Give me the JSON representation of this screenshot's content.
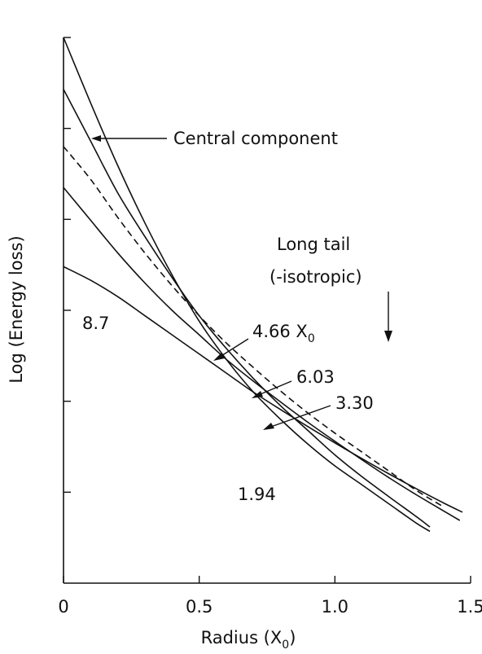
{
  "chart_data": {
    "type": "line",
    "xlabel": "Radius (X",
    "xlabel_sub": "0",
    "xlabel_close": ")",
    "ylabel": "Log (Energy loss)",
    "xlim": [
      0,
      1.5
    ],
    "x_ticks": [
      "0",
      "0.5",
      "1.0",
      "1.5"
    ],
    "x_tick_values": [
      0,
      0.5,
      1.0,
      1.5
    ],
    "y_ticks_count": 6,
    "ylim": [
      0,
      1
    ],
    "grid": false,
    "series": [
      {
        "name": "1.94",
        "dashed": false,
        "x": [
          0,
          0.1,
          0.2,
          0.3,
          0.4,
          0.5,
          0.6,
          0.7,
          0.8,
          0.9,
          1.0,
          1.1,
          1.2,
          1.3,
          1.35
        ],
        "y": [
          1.0,
          0.88,
          0.765,
          0.66,
          0.565,
          0.48,
          0.41,
          0.35,
          0.3,
          0.255,
          0.215,
          0.18,
          0.145,
          0.11,
          0.095
        ]
      },
      {
        "name": "3.30",
        "dashed": false,
        "x": [
          0,
          0.1,
          0.2,
          0.3,
          0.4,
          0.5,
          0.6,
          0.7,
          0.8,
          0.9,
          1.0,
          1.1,
          1.2,
          1.3,
          1.35
        ],
        "y": [
          0.905,
          0.81,
          0.715,
          0.635,
          0.56,
          0.49,
          0.43,
          0.375,
          0.325,
          0.28,
          0.235,
          0.195,
          0.158,
          0.122,
          0.103
        ]
      },
      {
        "name": "4.66 X",
        "subscript": "0",
        "dashed": true,
        "x": [
          0,
          0.1,
          0.2,
          0.3,
          0.4,
          0.5,
          0.6,
          0.7,
          0.8,
          0.9,
          1.0,
          1.1,
          1.2,
          1.3,
          1.4
        ],
        "y": [
          0.8,
          0.74,
          0.67,
          0.605,
          0.545,
          0.49,
          0.44,
          0.395,
          0.352,
          0.312,
          0.275,
          0.24,
          0.205,
          0.17,
          0.14
        ]
      },
      {
        "name": "6.03",
        "dashed": false,
        "x": [
          0,
          0.1,
          0.2,
          0.3,
          0.4,
          0.5,
          0.6,
          0.7,
          0.8,
          0.9,
          1.0,
          1.1,
          1.2,
          1.3,
          1.46
        ],
        "y": [
          0.725,
          0.665,
          0.605,
          0.55,
          0.5,
          0.455,
          0.41,
          0.37,
          0.332,
          0.295,
          0.26,
          0.226,
          0.193,
          0.162,
          0.115
        ]
      },
      {
        "name": "8.7",
        "dashed": false,
        "x": [
          0,
          0.1,
          0.2,
          0.3,
          0.4,
          0.5,
          0.6,
          0.7,
          0.8,
          0.9,
          1.0,
          1.1,
          1.2,
          1.3,
          1.4,
          1.47
        ],
        "y": [
          0.58,
          0.555,
          0.525,
          0.49,
          0.455,
          0.42,
          0.385,
          0.35,
          0.318,
          0.287,
          0.257,
          0.228,
          0.2,
          0.173,
          0.147,
          0.13
        ]
      }
    ],
    "annotations": [
      {
        "text": "Central component"
      },
      {
        "text": "Long tail"
      },
      {
        "text": "(-isotropic)"
      }
    ]
  }
}
